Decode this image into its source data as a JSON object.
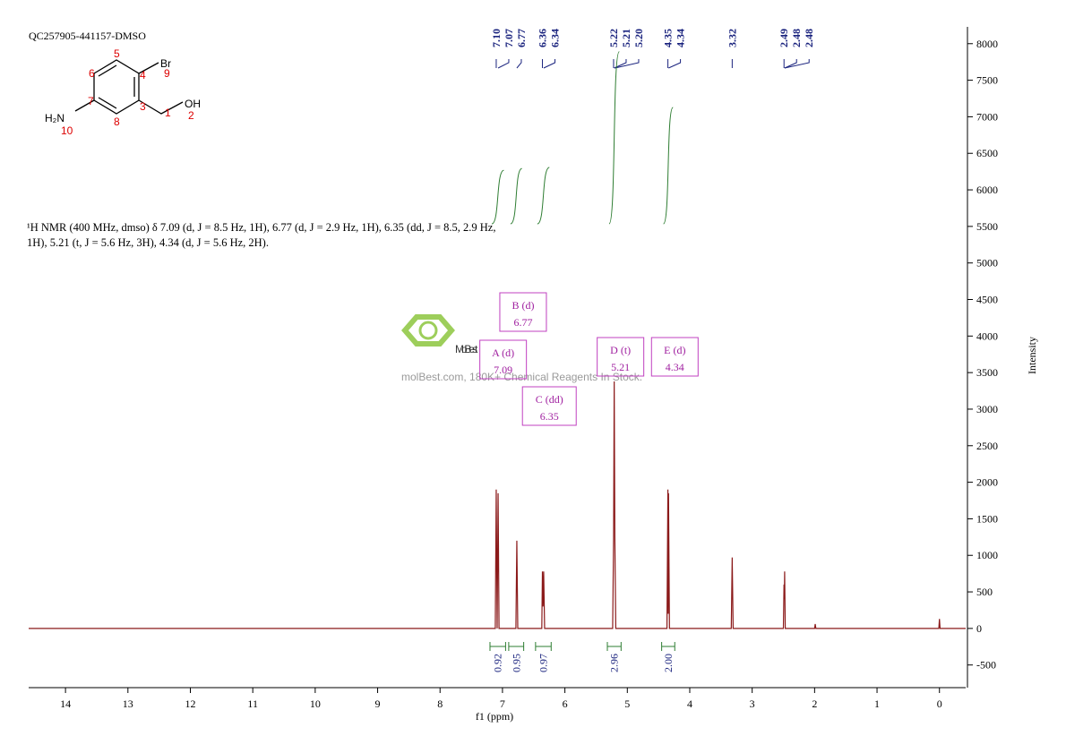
{
  "chart_data": {
    "type": "line",
    "title": "QC257905-441157-DMSO",
    "x_label": "f1 (ppm)",
    "y_label": "Intensity",
    "xlim": [
      14.59,
      -0.42
    ],
    "xticks": [
      14,
      13,
      12,
      11,
      10,
      9,
      8,
      7,
      6,
      5,
      4,
      3,
      2,
      1,
      0
    ],
    "ylim": [
      -810,
      8230
    ],
    "yticks": [
      -500,
      0,
      500,
      1000,
      1500,
      2000,
      2500,
      3000,
      3500,
      4000,
      4500,
      5000,
      5500,
      6000,
      6500,
      7000,
      7500,
      8000
    ],
    "color": "#8b1a1a",
    "x": [
      14.59,
      7.115,
      7.1,
      7.085,
      7.07,
      7.055,
      6.785,
      6.77,
      6.755,
      6.37,
      6.36,
      6.35,
      6.34,
      6.325,
      5.235,
      5.22,
      5.21,
      5.2,
      5.185,
      4.365,
      4.35,
      4.345,
      4.34,
      4.325,
      3.335,
      3.32,
      3.305,
      2.5,
      2.49,
      2.485,
      2.48,
      2.47,
      2.0,
      1.99,
      1.98,
      0.01,
      0.0,
      -0.01,
      -0.42
    ],
    "values": [
      0,
      0,
      1900,
      0,
      1850,
      0,
      0,
      1200,
      0,
      0,
      780,
      300,
      780,
      0,
      0,
      1250,
      3380,
      1250,
      0,
      0,
      1900,
      200,
      1850,
      0,
      0,
      970,
      0,
      0,
      600,
      400,
      780,
      0,
      0,
      60,
      0,
      0,
      130,
      0,
      0
    ],
    "peaks": [
      {
        "value": 7.1,
        "label": "7.10"
      },
      {
        "value": 7.07,
        "label": "7.07"
      },
      {
        "value": 6.77,
        "label": "6.77"
      },
      {
        "value": 6.36,
        "label": "6.36"
      },
      {
        "value": 6.34,
        "label": "6.34"
      },
      {
        "value": 5.22,
        "label": "5.22"
      },
      {
        "value": 5.21,
        "label": "5.21"
      },
      {
        "value": 5.2,
        "label": "5.20"
      },
      {
        "value": 4.35,
        "label": "4.35"
      },
      {
        "value": 4.34,
        "label": "4.34"
      },
      {
        "value": 3.32,
        "label": "3.32"
      },
      {
        "value": 2.49,
        "label": "2.49"
      },
      {
        "value": 2.48,
        "label": "2.48"
      },
      {
        "value": 2.48,
        "label": "2.48"
      }
    ],
    "integrals": [
      {
        "range": [
          7.2,
          6.95
        ],
        "value": 0.92
      },
      {
        "range": [
          6.9,
          6.66
        ],
        "value": 0.95
      },
      {
        "range": [
          6.47,
          6.22
        ],
        "value": 0.97
      },
      {
        "range": [
          5.32,
          5.1
        ],
        "value": 2.96
      },
      {
        "range": [
          4.45,
          4.24
        ],
        "value": 2.0
      }
    ],
    "integral_labels": [
      "0.92",
      "0.95",
      "0.97",
      "2.96",
      "2.00"
    ],
    "multiplets": [
      {
        "label": "A (d)",
        "shift": 7.09
      },
      {
        "label": "B (d)",
        "shift": 6.77
      },
      {
        "label": "C (dd)",
        "shift": 6.35
      },
      {
        "label": "D (t)",
        "shift": 5.21
      },
      {
        "label": "E (d)",
        "shift": 4.34
      }
    ],
    "description": "¹H NMR (400 MHz, dmso) δ 7.09 (d, J = 8.5 Hz, 1H), 6.77 (d, J = 2.9 Hz, 1H), 6.35 (dd, J = 8.5, 2.9 Hz, 1H), 5.21 (t, J = 5.6 Hz, 3H), 4.34 (d, J = 5.6 Hz, 2H).",
    "structure": {
      "atoms": [
        "Br",
        "H₂N",
        "OH"
      ],
      "numbers": [
        "1",
        "2",
        "3",
        "4",
        "5",
        "6",
        "7",
        "8",
        "9",
        "10"
      ]
    },
    "watermark": {
      "logo": "MolBest",
      "text": "molBest.com, 180K+ Chemical Reagents In Stock."
    }
  }
}
